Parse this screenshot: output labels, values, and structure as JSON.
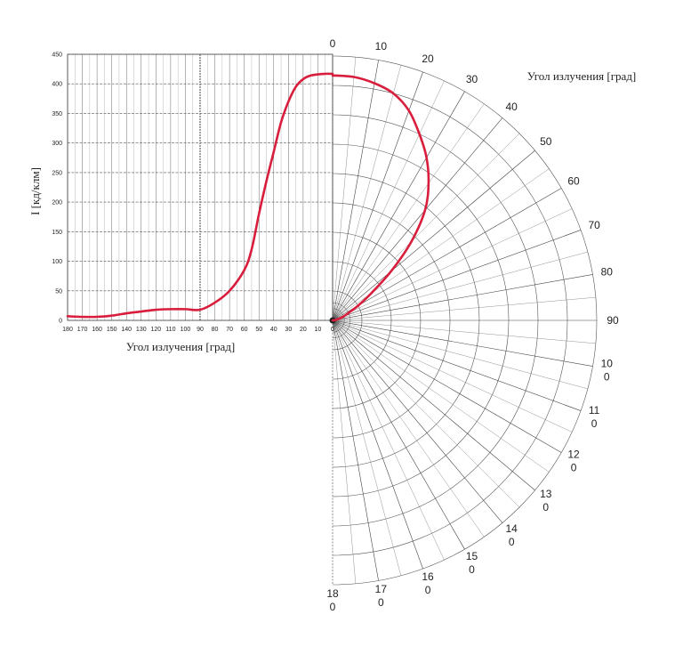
{
  "chart_data": [
    {
      "type": "line",
      "title": "",
      "xlabel": "Угол излучения    [град]",
      "ylabel": "I   [кд/клм]",
      "xlim": [
        180,
        0
      ],
      "ylim": [
        0,
        450
      ],
      "x_ticks": [
        "180",
        "170",
        "160",
        "150",
        "140",
        "130",
        "120",
        "110",
        "100",
        "90",
        "80",
        "70",
        "60",
        "50",
        "40",
        "30",
        "20",
        "10",
        "0"
      ],
      "y_ticks": [
        "0",
        "50",
        "100",
        "150",
        "200",
        "250",
        "300",
        "350",
        "400",
        "450"
      ],
      "grid": true,
      "series": [
        {
          "color": "#d81e3c",
          "x": [
            180,
            170,
            160,
            150,
            140,
            130,
            120,
            110,
            100,
            90,
            80,
            70,
            60,
            55,
            50,
            45,
            40,
            35,
            30,
            25,
            20,
            15,
            10,
            5,
            0
          ],
          "y": [
            7,
            6,
            6,
            8,
            12,
            15,
            18,
            19,
            19,
            18,
            30,
            50,
            85,
            120,
            180,
            235,
            285,
            335,
            370,
            395,
            408,
            414,
            416,
            417,
            417
          ]
        }
      ]
    },
    {
      "type": "polar",
      "title": "",
      "angle_label": "Угол излучения    [град]",
      "angle_range": [
        0,
        180
      ],
      "rmax": 450,
      "angle_ticks": [
        {
          "deg": 0,
          "lines": [
            "0"
          ]
        },
        {
          "deg": 10,
          "lines": [
            "10"
          ]
        },
        {
          "deg": 20,
          "lines": [
            "20"
          ]
        },
        {
          "deg": 30,
          "lines": [
            "30"
          ]
        },
        {
          "deg": 40,
          "lines": [
            "40"
          ]
        },
        {
          "deg": 50,
          "lines": [
            "50"
          ]
        },
        {
          "deg": 60,
          "lines": [
            "60"
          ]
        },
        {
          "deg": 70,
          "lines": [
            "70"
          ]
        },
        {
          "deg": 80,
          "lines": [
            "80"
          ]
        },
        {
          "deg": 90,
          "lines": [
            "90"
          ]
        },
        {
          "deg": 100,
          "lines": [
            "10",
            "0"
          ]
        },
        {
          "deg": 110,
          "lines": [
            "11",
            "0"
          ]
        },
        {
          "deg": 120,
          "lines": [
            "12",
            "0"
          ]
        },
        {
          "deg": 130,
          "lines": [
            "13",
            "0"
          ]
        },
        {
          "deg": 140,
          "lines": [
            "14",
            "0"
          ]
        },
        {
          "deg": 150,
          "lines": [
            "15",
            "0"
          ]
        },
        {
          "deg": 160,
          "lines": [
            "16",
            "0"
          ]
        },
        {
          "deg": 170,
          "lines": [
            "17",
            "0"
          ]
        },
        {
          "deg": 180,
          "lines": [
            "18",
            "0"
          ]
        }
      ],
      "series": [
        {
          "color": "#d81e3c",
          "angle": [
            0,
            5,
            10,
            15,
            20,
            25,
            30,
            35,
            40,
            45,
            50,
            55,
            60,
            65,
            70,
            75,
            80,
            85,
            90
          ],
          "r": [
            417,
            416,
            410,
            400,
            380,
            350,
            320,
            285,
            245,
            190,
            130,
            80,
            50,
            30,
            20,
            12,
            6,
            3,
            0
          ]
        }
      ]
    }
  ]
}
